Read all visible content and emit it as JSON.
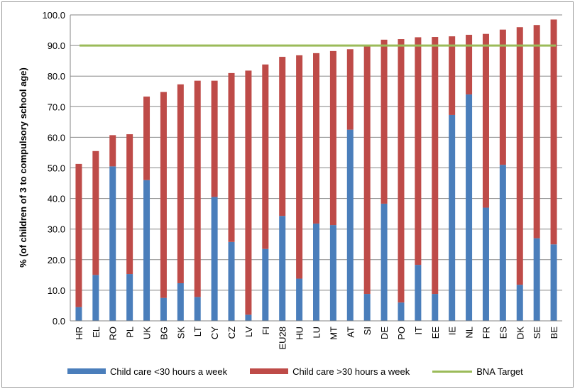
{
  "chart_data": {
    "type": "bar",
    "stacked": true,
    "categories": [
      "HR",
      "EL",
      "RO",
      "PL",
      "UK",
      "BG",
      "SK",
      "LT",
      "CY",
      "CZ",
      "LV",
      "FI",
      "EU28",
      "HU",
      "LU",
      "MT",
      "AT",
      "SI",
      "DE",
      "PO",
      "IT",
      "EE",
      "IE",
      "NL",
      "FR",
      "ES",
      "DK",
      "SE",
      "BE"
    ],
    "series": [
      {
        "name": "Child care <30 hours a week",
        "color": "#4a7ebb",
        "values": [
          4.5,
          15.0,
          50.5,
          15.3,
          46.0,
          7.5,
          12.3,
          7.8,
          40.5,
          25.8,
          2.0,
          23.5,
          34.3,
          13.8,
          31.8,
          31.3,
          62.5,
          8.8,
          38.3,
          6.0,
          18.3,
          8.8,
          67.3,
          74.0,
          37.0,
          51.0,
          11.8,
          27.0,
          25.0
        ]
      },
      {
        "name": "Child care >30 hours a week",
        "color": "#be4b48",
        "values": [
          46.8,
          40.5,
          10.2,
          45.7,
          27.3,
          67.3,
          65.0,
          70.7,
          38.0,
          55.2,
          79.8,
          60.3,
          52.0,
          73.0,
          55.7,
          56.9,
          26.3,
          81.2,
          53.6,
          86.1,
          74.4,
          84.0,
          25.7,
          19.5,
          56.8,
          44.2,
          84.2,
          69.7,
          73.5
        ]
      }
    ],
    "target": {
      "name": "BNA Target",
      "value": 90.0,
      "color": "#9bbb59"
    },
    "ylabel": "% (of children of 3 to compulsory school age)",
    "xlabel": "",
    "ylim": [
      0,
      100
    ],
    "yticks": [
      "0.0",
      "10.0",
      "20.0",
      "30.0",
      "40.0",
      "50.0",
      "60.0",
      "70.0",
      "80.0",
      "90.0",
      "100.0"
    ],
    "grid": true,
    "legend_position": "bottom"
  }
}
